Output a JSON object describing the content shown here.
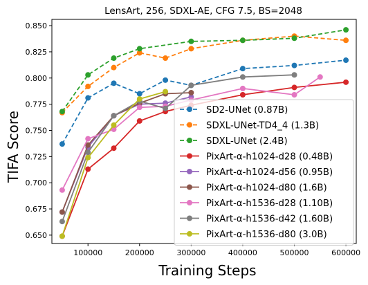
{
  "chart_data": {
    "type": "line",
    "title": "LensArt, 256, SDXL-AE, CFG 7.5, BS=2048",
    "xlabel": "Training Steps",
    "ylabel": "TIFA Score",
    "xlim": [
      30000,
      620000
    ],
    "ylim": [
      0.642,
      0.856
    ],
    "xticks": [
      100000,
      200000,
      300000,
      400000,
      500000,
      600000
    ],
    "xtick_labels": [
      "100000",
      "200000",
      "300000",
      "400000",
      "500000",
      "600000"
    ],
    "yticks": [
      0.65,
      0.675,
      0.7,
      0.725,
      0.75,
      0.775,
      0.8,
      0.825,
      0.85
    ],
    "ytick_labels": [
      "0.650",
      "0.675",
      "0.700",
      "0.725",
      "0.750",
      "0.775",
      "0.800",
      "0.825",
      "0.850"
    ],
    "grid": false,
    "legend_position": "lower-right",
    "series": [
      {
        "name": "SD2-UNet (0.87B)",
        "color": "#1f77b4",
        "style": "dashed",
        "x": [
          50000,
          100000,
          150000,
          200000,
          250000,
          300000,
          400000,
          500000,
          600000
        ],
        "y": [
          0.737,
          0.781,
          0.795,
          0.785,
          0.798,
          0.793,
          0.809,
          0.812,
          0.817
        ]
      },
      {
        "name": "SDXL-UNet-TD4_4 (1.3B)",
        "color": "#ff7f0e",
        "style": "dashed",
        "x": [
          50000,
          100000,
          150000,
          200000,
          250000,
          300000,
          400000,
          500000,
          600000
        ],
        "y": [
          0.767,
          0.792,
          0.81,
          0.824,
          0.819,
          0.828,
          0.836,
          0.84,
          0.836
        ]
      },
      {
        "name": "SDXL-UNet (2.4B)",
        "color": "#2ca02c",
        "style": "dashed",
        "x": [
          50000,
          100000,
          150000,
          200000,
          300000,
          400000,
          500000,
          600000
        ],
        "y": [
          0.768,
          0.803,
          0.819,
          0.828,
          0.835,
          0.836,
          0.838,
          0.846
        ]
      },
      {
        "name": "PixArt-α-h1024-d28 (0.48B)",
        "color": "#d62728",
        "style": "solid",
        "x": [
          50000,
          100000,
          150000,
          200000,
          250000,
          300000,
          400000,
          500000,
          600000
        ],
        "y": [
          0.649,
          0.713,
          0.733,
          0.759,
          0.768,
          0.774,
          0.784,
          0.791,
          0.796
        ]
      },
      {
        "name": "PixArt-α-h1024-d56 (0.95B)",
        "color": "#9467bd",
        "style": "solid",
        "x": [
          50000,
          100000,
          150000,
          200000,
          250000,
          300000
        ],
        "y": [
          0.672,
          0.734,
          0.764,
          0.775,
          0.776,
          0.782
        ]
      },
      {
        "name": "PixArt-α-h1024-d80 (1.6B)",
        "color": "#8c564b",
        "style": "solid",
        "x": [
          50000,
          100000,
          150000,
          200000,
          250000,
          300000
        ],
        "y": [
          0.672,
          0.736,
          0.764,
          0.776,
          0.785,
          0.786
        ]
      },
      {
        "name": "PixArt-α-h1536-d28 (1.10B)",
        "color": "#e377c2",
        "style": "solid",
        "x": [
          50000,
          100000,
          150000,
          200000,
          250000,
          300000,
          400000,
          500000,
          550000
        ],
        "y": [
          0.693,
          0.742,
          0.751,
          0.772,
          0.773,
          0.779,
          0.79,
          0.784,
          0.801
        ]
      },
      {
        "name": "PixArt-α-h1536-d42 (1.60B)",
        "color": "#7f7f7f",
        "style": "solid",
        "x": [
          50000,
          100000,
          150000,
          200000,
          250000,
          300000,
          400000,
          500000
        ],
        "y": [
          0.663,
          0.729,
          0.764,
          0.778,
          0.771,
          0.793,
          0.801,
          0.803
        ]
      },
      {
        "name": "PixArt-α-h1536-d80 (3.0B)",
        "color": "#bcbd22",
        "style": "solid",
        "x": [
          50000,
          100000,
          150000,
          200000,
          250000
        ],
        "y": [
          0.649,
          0.724,
          0.755,
          0.78,
          0.787
        ]
      }
    ]
  }
}
